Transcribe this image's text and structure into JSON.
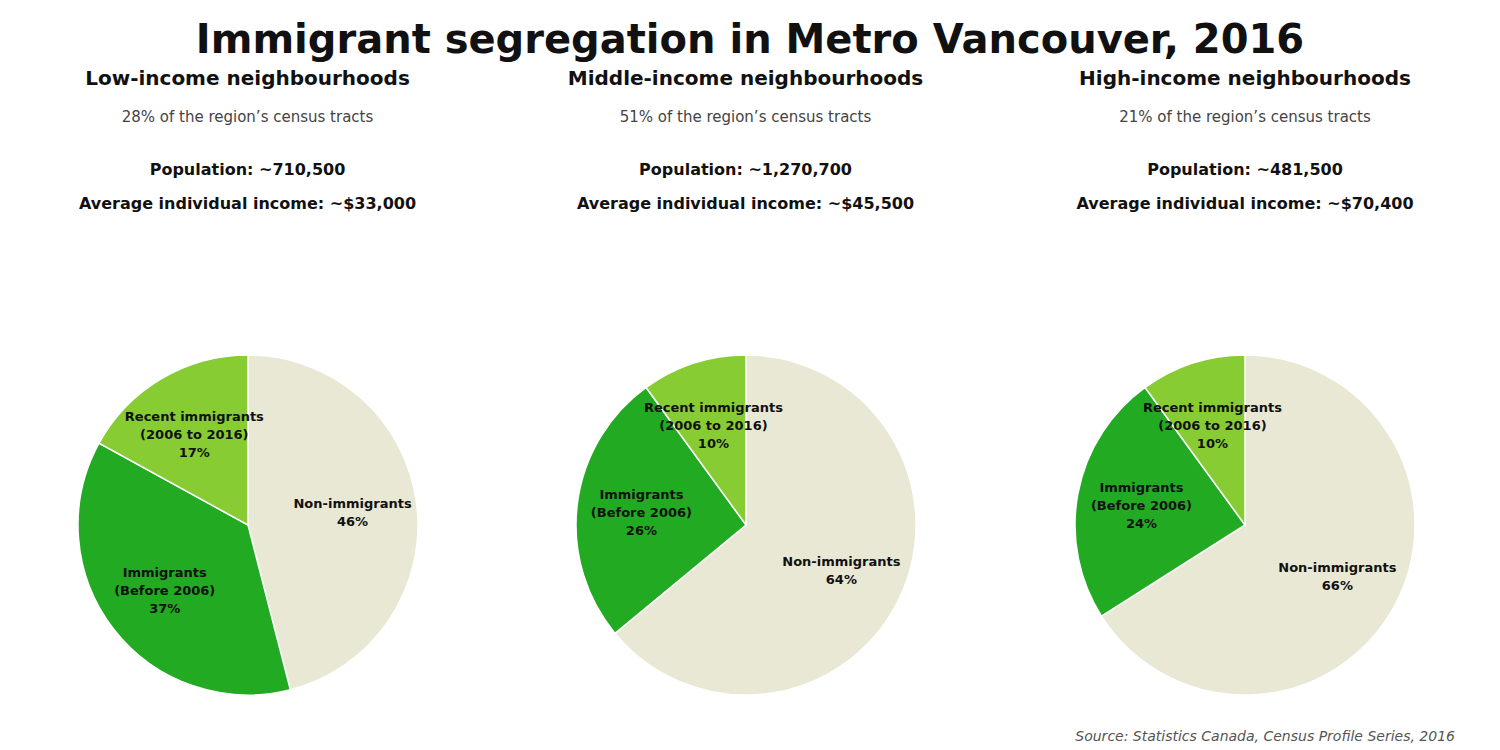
{
  "title": "Immigrant segregation in Metro Vancouver, 2016",
  "annotations": [
    "Source: Statistics Canada, Census Profile Series, 2016"
  ],
  "chart_data": [
    {
      "type": "pie",
      "title": "Low-income neighbourhoods",
      "subtitle": "28% of the region’s census tracts",
      "annotations": [
        "Population: ~710,500",
        "Average individual income: ~$33,000"
      ],
      "categories": [
        "Non-immigrants",
        "Immigrants\n(Before 2006)",
        "Recent immigrants\n(2006 to 2016)"
      ],
      "values": [
        46,
        37,
        17
      ],
      "value_labels": [
        "46%",
        "37%",
        "17%"
      ],
      "data_labels": true,
      "colors": [
        "#e8e8d5",
        "#22aa22",
        "#88cc33"
      ]
    },
    {
      "type": "pie",
      "title": "Middle-income neighbourhoods",
      "subtitle": "51% of the region’s census tracts",
      "annotations": [
        "Population: ~1,270,700",
        "Average individual income: ~$45,500"
      ],
      "categories": [
        "Non-immigrants",
        "Immigrants\n(Before 2006)",
        "Recent immigrants\n(2006 to 2016)"
      ],
      "values": [
        64,
        26,
        10
      ],
      "value_labels": [
        "64%",
        "26%",
        "10%"
      ],
      "data_labels": true,
      "colors": [
        "#e8e8d5",
        "#22aa22",
        "#88cc33"
      ]
    },
    {
      "type": "pie",
      "title": "High-income neighbourhoods",
      "subtitle": "21% of the region’s census tracts",
      "annotations": [
        "Population: ~481,500",
        "Average individual income: ~$70,400"
      ],
      "categories": [
        "Non-immigrants",
        "Immigrants\n(Before 2006)",
        "Recent immigrants\n(2006 to 2016)"
      ],
      "values": [
        66,
        24,
        10
      ],
      "value_labels": [
        "66%",
        "24%",
        "10%"
      ],
      "data_labels": true,
      "colors": [
        "#e8e8d5",
        "#22aa22",
        "#88cc33"
      ]
    }
  ]
}
